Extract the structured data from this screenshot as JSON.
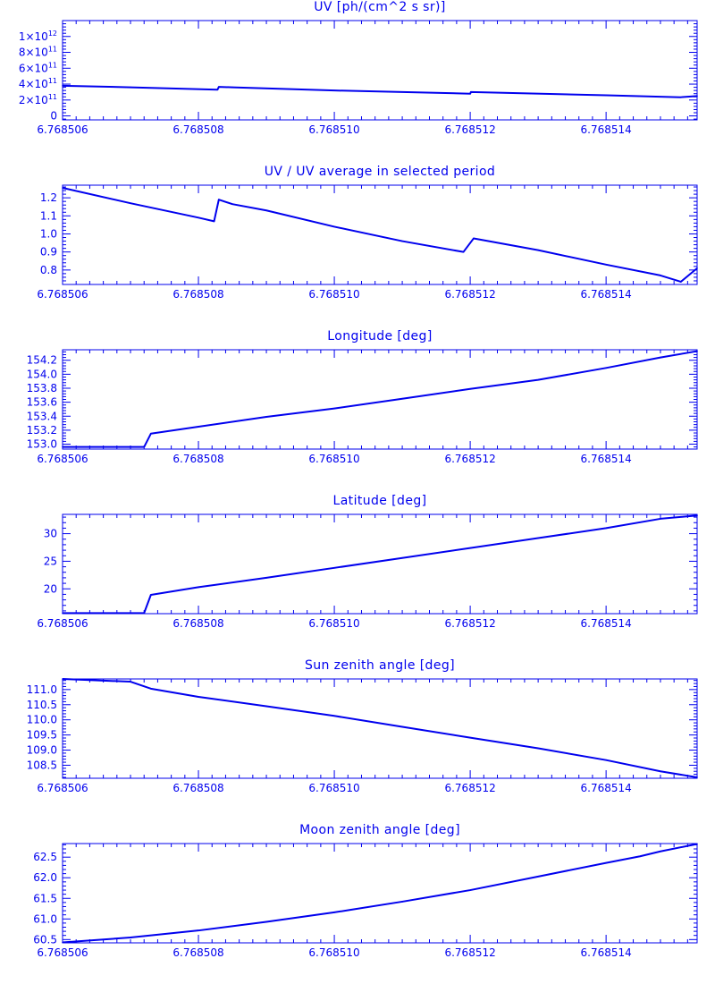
{
  "colors": {
    "axis": "#0000ee",
    "background": "#ffffff"
  },
  "chart_data": [
    {
      "type": "line",
      "title": "UV [ph/(cm^2 s sr)]",
      "xlim": [
        6.768506,
        6.76851534
      ],
      "ylim": [
        -50000000000.0,
        1200000000000.0
      ],
      "x_ticks": [
        "6.768506",
        "6.768508",
        "6.768510",
        "6.768512",
        "6.768514"
      ],
      "y_ticks": [
        {
          "value": 0,
          "base": "0",
          "exp": ""
        },
        {
          "value": 200000000000.0,
          "base": "2×10",
          "exp": "11"
        },
        {
          "value": 400000000000.0,
          "base": "4×10",
          "exp": "11"
        },
        {
          "value": 600000000000.0,
          "base": "6×10",
          "exp": "11"
        },
        {
          "value": 800000000000.0,
          "base": "8×10",
          "exp": "11"
        },
        {
          "value": 1000000000000.0,
          "base": "1×10",
          "exp": "12"
        }
      ],
      "x": [
        6.768506,
        6.768507,
        6.76850828,
        6.7685083,
        6.7685085,
        6.76851,
        6.768512,
        6.76851201,
        6.768514,
        6.7685151,
        6.76851534
      ],
      "y": [
        380000000000.0,
        360000000000.0,
        330000000000.0,
        365000000000.0,
        360000000000.0,
        320000000000.0,
        280000000000.0,
        300000000000.0,
        260000000000.0,
        235000000000.0,
        250000000000.0
      ]
    },
    {
      "type": "line",
      "title": "UV / UV average in selected period",
      "xlim": [
        6.768506,
        6.76851534
      ],
      "ylim": [
        0.72,
        1.27
      ],
      "x_ticks": [
        "6.768506",
        "6.768508",
        "6.768510",
        "6.768512",
        "6.768514"
      ],
      "y_ticks": [
        {
          "value": 0.8,
          "label": "0.8"
        },
        {
          "value": 0.9,
          "label": "0.9"
        },
        {
          "value": 1.0,
          "label": "1.0"
        },
        {
          "value": 1.1,
          "label": "1.1"
        },
        {
          "value": 1.2,
          "label": "1.2"
        }
      ],
      "x": [
        6.768506,
        6.768507,
        6.768508,
        6.76850823,
        6.7685083,
        6.7685085,
        6.768509,
        6.76851,
        6.768511,
        6.7685119,
        6.76851205,
        6.768513,
        6.768514,
        6.7685148,
        6.7685151,
        6.76851534
      ],
      "y": [
        1.255,
        1.17,
        1.09,
        1.07,
        1.19,
        1.165,
        1.13,
        1.04,
        0.96,
        0.9,
        0.975,
        0.91,
        0.83,
        0.77,
        0.735,
        0.81
      ]
    },
    {
      "type": "line",
      "title": "Longitude [deg]",
      "xlim": [
        6.768506,
        6.76851534
      ],
      "ylim": [
        152.93,
        154.35
      ],
      "x_ticks": [
        "6.768506",
        "6.768508",
        "6.768510",
        "6.768512",
        "6.768514"
      ],
      "y_ticks": [
        {
          "value": 153.0,
          "label": "153.0"
        },
        {
          "value": 153.2,
          "label": "153.2"
        },
        {
          "value": 153.4,
          "label": "153.4"
        },
        {
          "value": 153.6,
          "label": "153.6"
        },
        {
          "value": 153.8,
          "label": "153.8"
        },
        {
          "value": 154.0,
          "label": "154.0"
        },
        {
          "value": 154.2,
          "label": "154.2"
        }
      ],
      "x": [
        6.768506,
        6.7685072,
        6.7685073,
        6.768508,
        6.768509,
        6.76851,
        6.768511,
        6.768512,
        6.768513,
        6.768514,
        6.7685148,
        6.76851534
      ],
      "y": [
        152.96,
        152.96,
        153.15,
        153.25,
        153.39,
        153.51,
        153.65,
        153.79,
        153.92,
        154.09,
        154.24,
        154.33
      ]
    },
    {
      "type": "line",
      "title": "Latitude [deg]",
      "xlim": [
        6.768506,
        6.76851534
      ],
      "ylim": [
        15.5,
        33.5
      ],
      "x_ticks": [
        "6.768506",
        "6.768508",
        "6.768510",
        "6.768512",
        "6.768514"
      ],
      "y_ticks": [
        {
          "value": 20,
          "label": "20"
        },
        {
          "value": 25,
          "label": "25"
        },
        {
          "value": 30,
          "label": "30"
        }
      ],
      "x": [
        6.768506,
        6.7685072,
        6.7685073,
        6.768508,
        6.768509,
        6.76851,
        6.768511,
        6.768512,
        6.768513,
        6.768514,
        6.7685148,
        6.76851534
      ],
      "y": [
        15.6,
        15.6,
        18.9,
        20.3,
        22.0,
        23.8,
        25.6,
        27.4,
        29.2,
        31.0,
        32.7,
        33.3
      ]
    },
    {
      "type": "line",
      "title": "Sun zenith angle [deg]",
      "xlim": [
        6.768506,
        6.76851534
      ],
      "ylim": [
        108.07,
        111.35
      ],
      "x_ticks": [
        "6.768506",
        "6.768508",
        "6.768510",
        "6.768512",
        "6.768514"
      ],
      "y_ticks": [
        {
          "value": 108.5,
          "label": "108.5"
        },
        {
          "value": 109.0,
          "label": "109.0"
        },
        {
          "value": 109.5,
          "label": "109.5"
        },
        {
          "value": 110.0,
          "label": "110.0"
        },
        {
          "value": 110.5,
          "label": "110.5"
        },
        {
          "value": 111.0,
          "label": "111.0"
        }
      ],
      "x": [
        6.768506,
        6.768507,
        6.7685073,
        6.768508,
        6.768509,
        6.76851,
        6.768511,
        6.768512,
        6.768513,
        6.768514,
        6.7685148,
        6.76851534
      ],
      "y": [
        111.35,
        111.26,
        111.03,
        110.76,
        110.45,
        110.13,
        109.77,
        109.41,
        109.06,
        108.67,
        108.3,
        108.1
      ]
    },
    {
      "type": "line",
      "title": "Moon zenith angle [deg]",
      "xlim": [
        6.768506,
        6.76851534
      ],
      "ylim": [
        60.42,
        62.83
      ],
      "x_ticks": [
        "6.768506",
        "6.768508",
        "6.768510",
        "6.768512",
        "6.768514"
      ],
      "y_ticks": [
        {
          "value": 60.5,
          "label": "60.5"
        },
        {
          "value": 61.0,
          "label": "61.0"
        },
        {
          "value": 61.5,
          "label": "61.5"
        },
        {
          "value": 62.0,
          "label": "62.0"
        },
        {
          "value": 62.5,
          "label": "62.5"
        }
      ],
      "x": [
        6.768506,
        6.768507,
        6.768508,
        6.768509,
        6.76851,
        6.768511,
        6.768512,
        6.768513,
        6.768514,
        6.7685145,
        6.7685148,
        6.76851534
      ],
      "y": [
        60.43,
        60.55,
        60.72,
        60.93,
        61.16,
        61.42,
        61.7,
        62.03,
        62.36,
        62.52,
        62.64,
        62.82
      ]
    }
  ]
}
